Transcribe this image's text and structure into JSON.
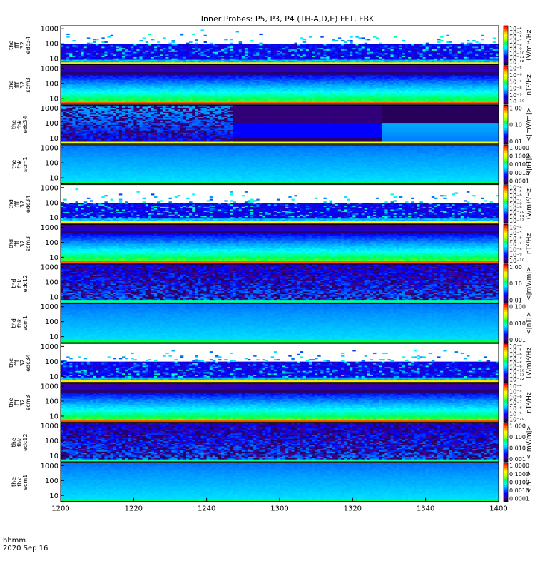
{
  "figure": {
    "title": "Inner Probes: P5, P3, P4 (TH-A,D,E) FFT, FBK",
    "time_label_line1": "hhmm",
    "time_label_line2": "2020 Sep 16"
  },
  "chart_data": {
    "type": "heatmap",
    "title": "Inner Probes: P5, P3, P4 (TH-A,D,E) FFT, FBK",
    "xlabel": "hhmm",
    "xlabel_sub": "2020 Sep 16",
    "x_ticks": [
      "1200",
      "1220",
      "1240",
      "1300",
      "1320",
      "1340",
      "1400"
    ],
    "xlim": [
      "1200",
      "1400"
    ],
    "y_scale": "log",
    "y_ticks": [
      "10",
      "100",
      "1000"
    ],
    "colormap": "rainbow",
    "panels": [
      {
        "ylabel": [
          "the",
          "fff",
          "32",
          "edc34"
        ],
        "cb_unit": "(V/m)²/Hz",
        "cb_labels": [
          "10⁻⁴",
          "10⁻⁵",
          "10⁻⁶",
          "10⁻⁷",
          "10⁻⁸",
          "10⁻⁹",
          "10⁻¹⁰",
          "10⁻¹¹",
          "10⁻¹²"
        ],
        "style": "bursty"
      },
      {
        "ylabel": [
          "the",
          "fff",
          "32",
          "scm3"
        ],
        "cb_unit": "nT²/Hz",
        "cb_labels": [
          "10⁻⁵",
          "10⁻⁶",
          "10⁻⁷",
          "10⁻⁸",
          "10⁻⁹",
          "10⁻¹⁰"
        ],
        "style": "banded"
      },
      {
        "ylabel": [
          "the",
          "fbk",
          "edc34"
        ],
        "cb_unit": "<|mV/m|>",
        "cb_labels": [
          "1.00",
          "0.10",
          "0.01"
        ],
        "style": "blocky"
      },
      {
        "ylabel": [
          "the",
          "fbk",
          "scm1"
        ],
        "cb_unit": "<|nT|>",
        "cb_labels": [
          "1.0000",
          "0.1000",
          "0.0100",
          "0.0010",
          "0.0001"
        ],
        "style": "smooth"
      },
      {
        "ylabel": [
          "thd",
          "fff",
          "32",
          "edc34"
        ],
        "cb_unit": "(V/m)²/Hz",
        "cb_labels": [
          "10⁻⁴",
          "10⁻⁵",
          "10⁻⁶",
          "10⁻⁷",
          "10⁻⁸",
          "10⁻⁹",
          "10⁻¹⁰",
          "10⁻¹¹",
          "10⁻¹²"
        ],
        "style": "bursty"
      },
      {
        "ylabel": [
          "thd",
          "fff",
          "32",
          "scm3"
        ],
        "cb_unit": "nT²/Hz",
        "cb_labels": [
          "10⁻⁴",
          "10⁻⁵",
          "10⁻⁶",
          "10⁻⁷",
          "10⁻⁸",
          "10⁻⁹",
          "10⁻¹⁰"
        ],
        "style": "banded"
      },
      {
        "ylabel": [
          "thd",
          "fbk",
          "edc12"
        ],
        "cb_unit": "<|mV/m|>",
        "cb_labels": [
          "1.00",
          "0.10",
          "0.01"
        ],
        "style": "mixed"
      },
      {
        "ylabel": [
          "thd",
          "fbk",
          "scm1"
        ],
        "cb_unit": "<|nT|>",
        "cb_labels": [
          "0.100",
          "0.010",
          "0.001"
        ],
        "style": "smooth"
      },
      {
        "ylabel": [
          "the",
          "fff",
          "32",
          "edc34"
        ],
        "cb_unit": "(V/m)²/Hz",
        "cb_labels": [
          "10⁻⁴",
          "10⁻⁵",
          "10⁻⁶",
          "10⁻⁷",
          "10⁻⁸",
          "10⁻⁹",
          "10⁻¹⁰",
          "10⁻¹¹",
          "10⁻¹²"
        ],
        "style": "bursty"
      },
      {
        "ylabel": [
          "the",
          "fff",
          "32",
          "scm3"
        ],
        "cb_unit": "nT²/Hz",
        "cb_labels": [
          "10⁻⁴",
          "10⁻⁵",
          "10⁻⁶",
          "10⁻⁷",
          "10⁻⁸",
          "10⁻⁹",
          "10⁻¹⁰"
        ],
        "style": "banded"
      },
      {
        "ylabel": [
          "the",
          "fbk",
          "edc12"
        ],
        "cb_unit": "<|mV/m|>",
        "cb_labels": [
          "1.000",
          "0.100",
          "0.010",
          "0.001"
        ],
        "style": "mixed"
      },
      {
        "ylabel": [
          "the",
          "fbk",
          "scm1"
        ],
        "cb_unit": "<|nT|>",
        "cb_labels": [
          "1.0000",
          "0.1000",
          "0.0100",
          "0.0010",
          "0.0001"
        ],
        "style": "smooth"
      }
    ]
  }
}
